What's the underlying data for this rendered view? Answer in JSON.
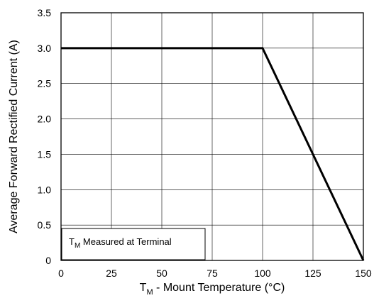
{
  "chart_data": {
    "type": "line",
    "title": "",
    "xlabel": {
      "main": "T",
      "sub": "M",
      "rest": " - Mount Temperature (°C)"
    },
    "ylabel": "Average Forward Rectified Current (A)",
    "xlim": [
      0,
      150
    ],
    "ylim": [
      0,
      3.5
    ],
    "x_ticks": [
      "0",
      "25",
      "50",
      "75",
      "100",
      "125",
      "150"
    ],
    "y_ticks": [
      "0",
      "0.5",
      "1.0",
      "1.5",
      "2.0",
      "2.5",
      "3.0",
      "3.5"
    ],
    "grid": true,
    "series": [
      {
        "x": [
          0,
          100,
          150
        ],
        "y": [
          3.0,
          3.0,
          0
        ]
      }
    ],
    "annotation": {
      "main": "T",
      "sub": "M",
      "rest": " Measured at Terminal"
    }
  },
  "colors": {
    "line": "#000000",
    "grid": "#000000",
    "background": "#ffffff"
  }
}
